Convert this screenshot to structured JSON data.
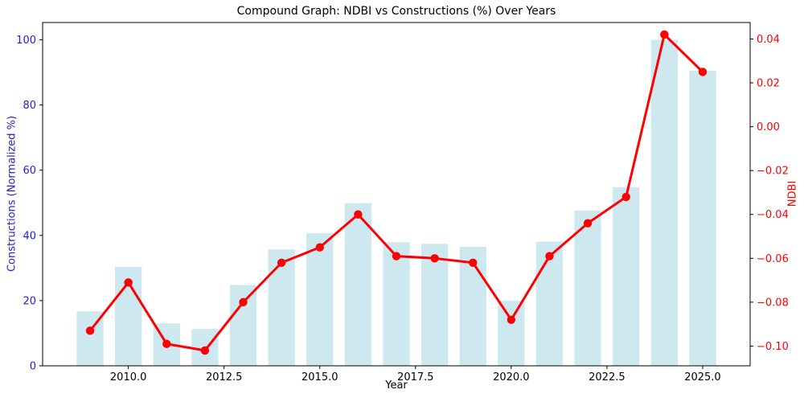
{
  "figure": {
    "background": "#ffffff",
    "plot_border_color": "#000000"
  },
  "chart_data": {
    "type": "combo-bar-line",
    "title": "Compound Graph: NDBI vs Constructions (%) Over Years",
    "xlabel": "Year",
    "ylabel_left": "Constructions (Normalized %)",
    "ylabel_right": "NDBI",
    "x": [
      2009,
      2010,
      2011,
      2012,
      2013,
      2014,
      2015,
      2016,
      2017,
      2018,
      2019,
      2020,
      2021,
      2022,
      2023,
      2024,
      2025
    ],
    "series": [
      {
        "name": "Constructions (Normalized %)",
        "type": "bar",
        "axis": "left",
        "color": "#cee8f0",
        "bar_width_years": 0.7,
        "values": [
          16.7,
          30.4,
          13.0,
          11.3,
          24.8,
          35.7,
          40.7,
          49.9,
          37.9,
          37.4,
          36.5,
          20.0,
          38.1,
          47.6,
          54.8,
          100.0,
          90.5
        ]
      },
      {
        "name": "NDBI",
        "type": "line",
        "axis": "right",
        "color": "#ff0000",
        "marker": "circle",
        "line_width": 3,
        "marker_radius": 5.2,
        "values": [
          -0.093,
          -0.071,
          -0.099,
          -0.102,
          -0.08,
          -0.062,
          -0.055,
          -0.04,
          -0.059,
          -0.06,
          -0.062,
          -0.088,
          -0.059,
          -0.044,
          -0.032,
          0.042,
          0.025
        ]
      }
    ],
    "xlim": [
      2007.76,
      2026.24
    ],
    "ylim_left": [
      0,
      105.3
    ],
    "ylim_right": [
      -0.109,
      0.0475
    ],
    "xticks": {
      "values": [
        2010.0,
        2012.5,
        2015.0,
        2017.5,
        2020.0,
        2022.5,
        2025.0
      ],
      "labels": [
        "2010.0",
        "2012.5",
        "2015.0",
        "2017.5",
        "2020.0",
        "2022.5",
        "2025.0"
      ],
      "label_color": "#000000"
    },
    "yticks_left": {
      "values": [
        0,
        20,
        40,
        60,
        80,
        100
      ],
      "labels": [
        "0",
        "20",
        "40",
        "60",
        "80",
        "100"
      ],
      "label_color": "#2222dd"
    },
    "yticks_right": {
      "values": [
        0.04,
        0.02,
        0.0,
        -0.02,
        -0.04,
        -0.06,
        -0.08,
        -0.1
      ],
      "labels": [
        "0.04",
        "0.02",
        "0.00",
        "−0.02",
        "−0.04",
        "−0.06",
        "−0.08",
        "−0.10"
      ],
      "label_color": "#ff0000"
    },
    "grid": false,
    "legend": "none",
    "tick_mark_color": "#000000"
  }
}
